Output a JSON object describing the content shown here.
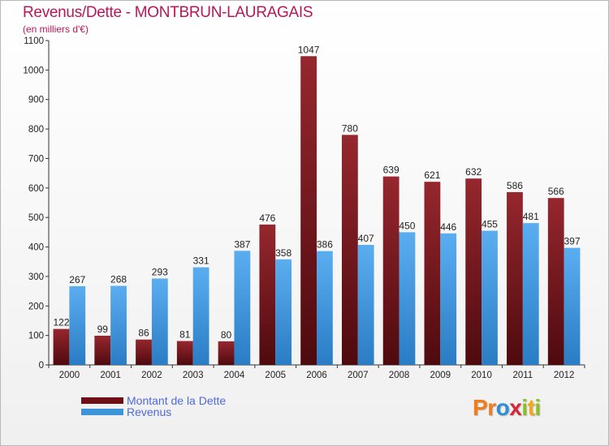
{
  "title": "Revenus/Dette - MONTBRUN-LAURAGAIS",
  "subtitle": "(en milliers d'€)",
  "logo": {
    "text": "Proxiti",
    "letters": [
      "P",
      "r",
      "o",
      "x",
      "i",
      "t",
      "i"
    ],
    "colors": [
      "#f07c1c",
      "#f07c1c",
      "#2e8fd6",
      "#d6283b",
      "#8cbf26",
      "#f0a91c",
      "#8cbf26"
    ]
  },
  "colors": {
    "dette": "#7a1a1f",
    "revenus": "#3d94d9",
    "title": "#b8175a",
    "legend": "#4d6bd9"
  },
  "chart_data": {
    "type": "bar",
    "title": "Revenus/Dette - MONTBRUN-LAURAGAIS",
    "ylabel": "(en milliers d'€)",
    "xlabel": "",
    "categories": [
      "2000",
      "2001",
      "2002",
      "2003",
      "2004",
      "2005",
      "2006",
      "2007",
      "2008",
      "2009",
      "2010",
      "2011",
      "2012"
    ],
    "series": [
      {
        "name": "Montant de la Dette",
        "color": "#7a1a1f",
        "values": [
          122,
          99,
          86,
          81,
          80,
          476,
          1047,
          780,
          639,
          621,
          632,
          586,
          566
        ]
      },
      {
        "name": "Revenus",
        "color": "#3d94d9",
        "values": [
          267,
          268,
          293,
          331,
          387,
          358,
          386,
          407,
          450,
          446,
          455,
          481,
          397
        ]
      }
    ],
    "ylim": [
      0,
      1100
    ],
    "yticks": [
      0,
      100,
      200,
      300,
      400,
      500,
      600,
      700,
      800,
      900,
      1000,
      1100
    ],
    "grid": false,
    "legend": "bottom-left"
  }
}
